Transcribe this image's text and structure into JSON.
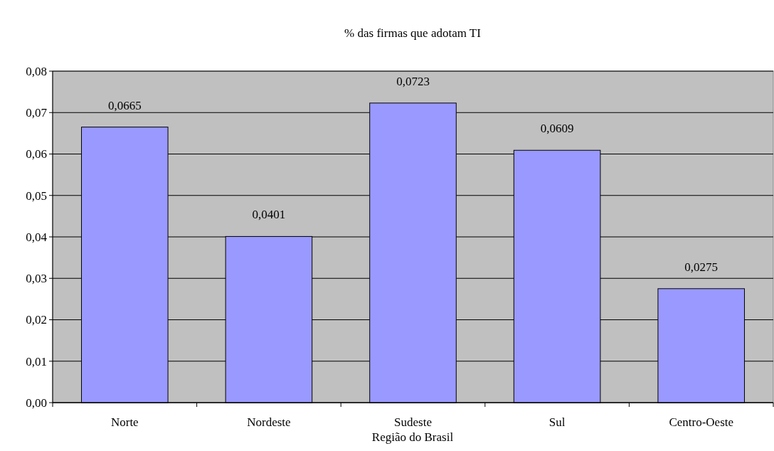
{
  "chart_data": {
    "type": "bar",
    "title": "% das firmas que adotam TI",
    "xlabel": "Região do Brasil",
    "categories": [
      "Norte",
      "Nordeste",
      "Sudeste",
      "Sul",
      "Centro-Oeste"
    ],
    "values": [
      0.0665,
      0.0401,
      0.0723,
      0.0609,
      0.0275
    ],
    "value_labels": [
      "0,0665",
      "0,0401",
      "0,0723",
      "0,0609",
      "0,0275"
    ],
    "color": "#9999ff",
    "ylim": [
      0,
      0.08
    ],
    "yticks": [
      {
        "value": 0,
        "label": "0,00"
      },
      {
        "value": 0.01,
        "label": "0,01"
      },
      {
        "value": 0.02,
        "label": "0,02"
      },
      {
        "value": 0.03,
        "label": "0,03"
      },
      {
        "value": 0.04,
        "label": "0,04"
      },
      {
        "value": 0.05,
        "label": "0,05"
      },
      {
        "value": 0.06,
        "label": "0,06"
      },
      {
        "value": 0.07,
        "label": "0,07"
      },
      {
        "value": 0.08,
        "label": "0,08"
      }
    ],
    "grid": "y"
  }
}
